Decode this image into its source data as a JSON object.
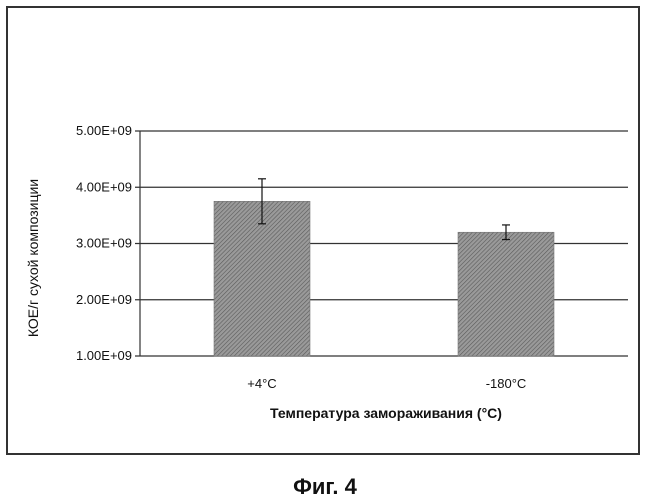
{
  "chart_data": {
    "type": "bar",
    "categories": [
      "+4°C",
      "-180°C"
    ],
    "values": [
      3750000000.0,
      3200000000.0
    ],
    "error_bars": [
      400000000.0,
      130000000.0
    ],
    "xlabel": "Температура замораживания (°C)",
    "ylabel": "КОЕ/г сухой композиции",
    "ylim": [
      1000000000.0,
      5000000000.0
    ],
    "yticks": [
      "1.00E+09",
      "2.00E+09",
      "3.00E+09",
      "4.00E+09",
      "5.00E+09"
    ],
    "grid": true,
    "bar_color": "#8a8a8a"
  },
  "caption": "Фиг. 4"
}
